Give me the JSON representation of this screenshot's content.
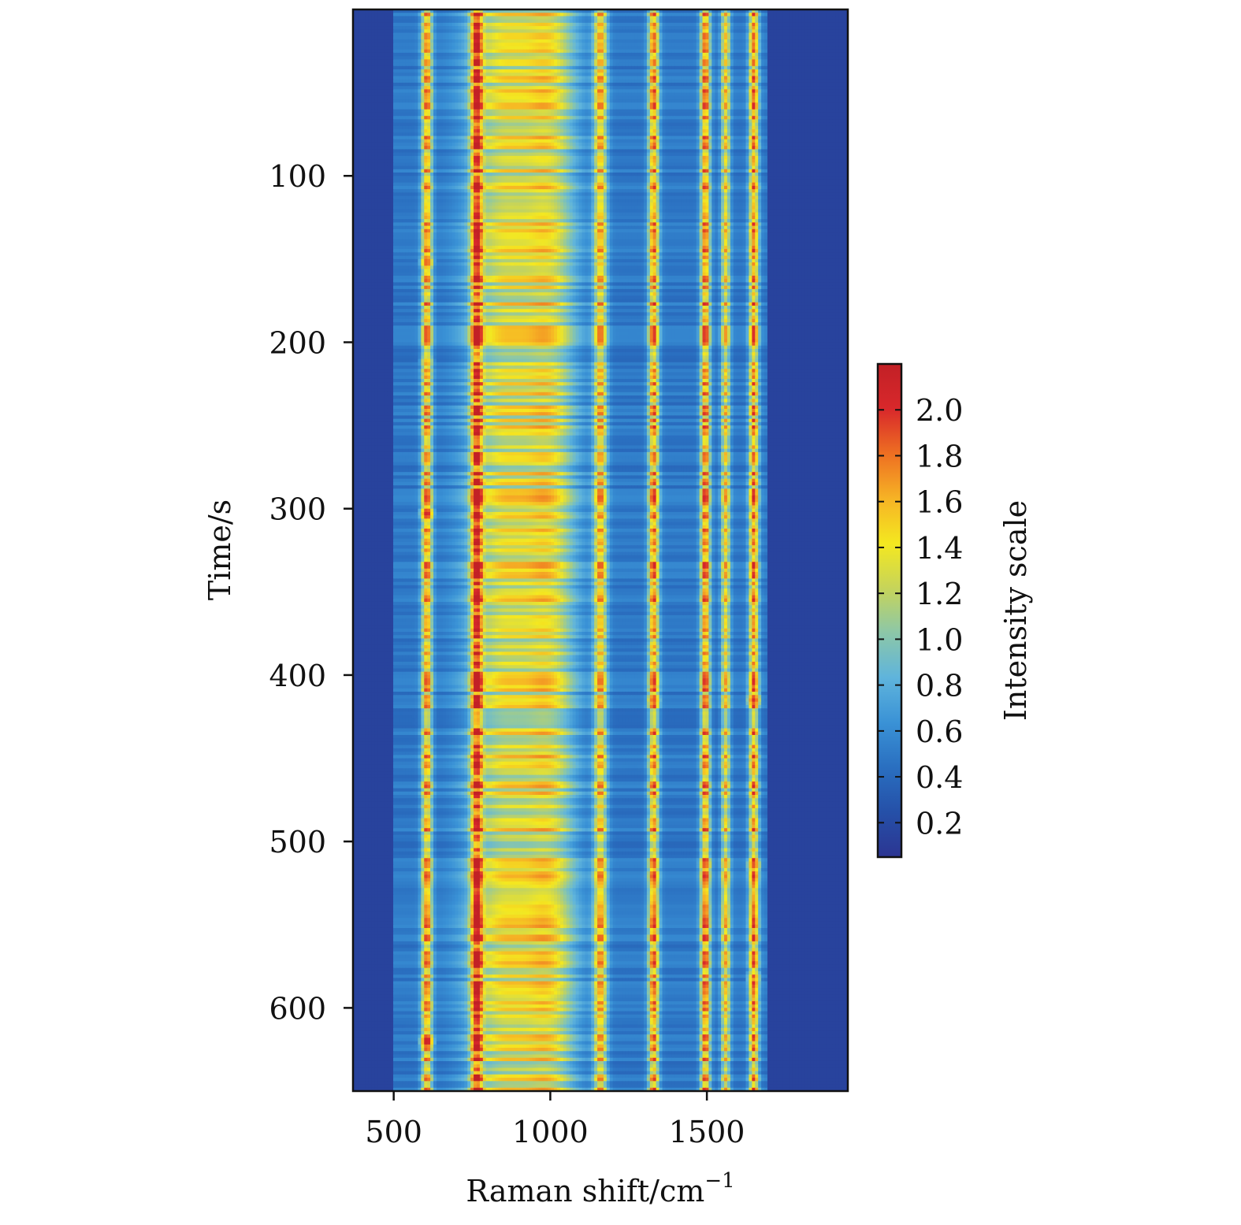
{
  "chart_data": {
    "type": "heatmap",
    "title": "",
    "xlabel": "Raman shift/cm",
    "xlabel_superscript": "−1",
    "ylabel": "Time/s",
    "colorbar_label": "Intensity scale",
    "xlim": [
      370,
      1950
    ],
    "ylim": [
      0,
      650
    ],
    "y_inverted": true,
    "x_ticks": [
      500,
      1000,
      1500
    ],
    "y_ticks": [
      100,
      200,
      300,
      400,
      500,
      600
    ],
    "colorbar_range": [
      0.05,
      2.2
    ],
    "colorbar_ticks": [
      "0.2",
      "0.4",
      "0.6",
      "0.8",
      "1.0",
      "1.2",
      "1.4",
      "1.6",
      "1.8",
      "2.0"
    ],
    "colormap": [
      "#2c3592",
      "#2550a8",
      "#2a6fc0",
      "#3a92d6",
      "#5fb4dc",
      "#8cc7a8",
      "#c6d45a",
      "#f4e820",
      "#f6b325",
      "#ee6f22",
      "#d8282b",
      "#c22026"
    ],
    "background_value": 0.15,
    "bands": [
      {
        "center": 606,
        "width": 12,
        "level": 1.15
      },
      {
        "center": 765,
        "width": 13,
        "level": 1.2
      },
      {
        "center": 850,
        "width": 80,
        "level": 0.8
      },
      {
        "center": 1000,
        "width": 60,
        "level": 0.75
      },
      {
        "center": 1160,
        "width": 15,
        "level": 1.05
      },
      {
        "center": 1330,
        "width": 12,
        "level": 1.2
      },
      {
        "center": 1495,
        "width": 11,
        "level": 1.25
      },
      {
        "center": 1560,
        "width": 10,
        "level": 0.95
      },
      {
        "center": 1650,
        "width": 11,
        "level": 1.2
      }
    ],
    "hotspots": [
      {
        "x": 606,
        "y": 152,
        "value": 1.9
      },
      {
        "x": 765,
        "y": 152,
        "value": 1.8
      },
      {
        "x": 606,
        "y": 303,
        "value": 2.1
      },
      {
        "x": 765,
        "y": 303,
        "value": 2.05
      },
      {
        "x": 606,
        "y": 620,
        "value": 2.2
      },
      {
        "x": 765,
        "y": 620,
        "value": 2.15
      },
      {
        "x": 606,
        "y": 212,
        "value": 1.6
      },
      {
        "x": 765,
        "y": 212,
        "value": 1.6
      },
      {
        "x": 1330,
        "y": 415,
        "value": 1.9
      },
      {
        "x": 1650,
        "y": 415,
        "value": 2.0
      },
      {
        "x": 1495,
        "y": 514,
        "value": 1.8
      },
      {
        "x": 1650,
        "y": 514,
        "value": 1.9
      },
      {
        "x": 1330,
        "y": 514,
        "value": 1.7
      },
      {
        "x": 1650,
        "y": 582,
        "value": 1.7
      },
      {
        "x": 606,
        "y": 598,
        "value": 1.8
      },
      {
        "x": 765,
        "y": 598,
        "value": 1.7
      }
    ]
  }
}
